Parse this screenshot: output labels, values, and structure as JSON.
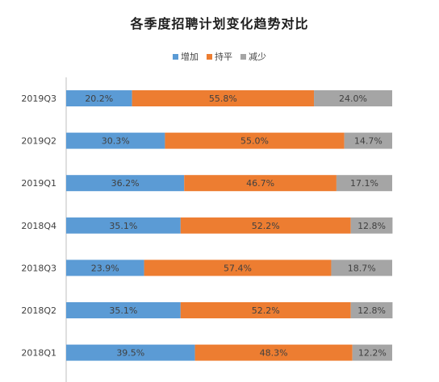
{
  "chart_data": {
    "type": "bar",
    "orientation": "horizontal",
    "stacked": true,
    "percent_stacked": true,
    "title": "各季度招聘计划变化趋势对比",
    "categories": [
      "2019Q3",
      "2019Q2",
      "2019Q1",
      "2018Q4",
      "2018Q3",
      "2018Q2",
      "2018Q1"
    ],
    "series": [
      {
        "name": "增加",
        "color": "#5b9bd5",
        "values": [
          20.2,
          30.3,
          36.2,
          35.1,
          23.9,
          35.1,
          39.5
        ]
      },
      {
        "name": "持平",
        "color": "#ed7d31",
        "values": [
          55.8,
          55.0,
          46.7,
          52.2,
          57.4,
          52.2,
          48.3
        ]
      },
      {
        "name": "减少",
        "color": "#a5a5a5",
        "values": [
          24.0,
          14.7,
          17.1,
          12.8,
          18.7,
          12.8,
          12.2
        ]
      }
    ],
    "labels": [
      [
        "20.2%",
        "30.3%",
        "36.2%",
        "35.1%",
        "23.9%",
        "35.1%",
        "39.5%"
      ],
      [
        "55.8%",
        "55.0%",
        "46.7%",
        "52.2%",
        "57.4%",
        "52.2%",
        "48.3%"
      ],
      [
        "24.0%",
        "14.7%",
        "17.1%",
        "12.8%",
        "18.7%",
        "12.8%",
        "12.2%"
      ]
    ],
    "legend_position": "top",
    "xlim": [
      0,
      100
    ],
    "grid": false
  }
}
